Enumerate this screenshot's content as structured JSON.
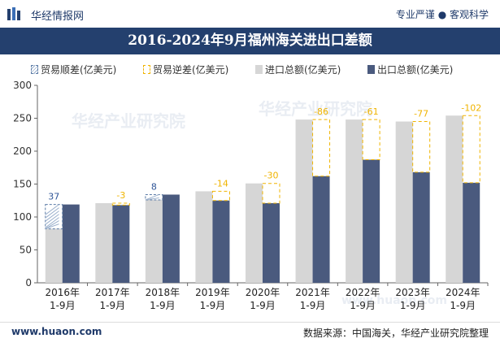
{
  "header": {
    "brand": "华经情报网",
    "slogan": "专业严谨 ● 客观科学"
  },
  "watermark": {
    "text": "华经产业研究院",
    "url": "www.huaon.com"
  },
  "chart_data": {
    "type": "bar",
    "title": "2016-2024年9月福州海关进出口差额",
    "categories": [
      "2016年\n1-9月",
      "2017年\n1-9月",
      "2018年\n1-9月",
      "2019年\n1-9月",
      "2020年\n1-9月",
      "2021年\n1-9月",
      "2022年\n1-9月",
      "2023年\n1-9月",
      "2024年\n1-9月"
    ],
    "legend": {
      "surplus": "贸易顺差(亿美元)",
      "deficit": "贸易逆差(亿美元)",
      "import": "进口总额(亿美元)",
      "export": "出口总额(亿美元)"
    },
    "series": [
      {
        "name": "进口总额(亿美元)",
        "values": [
          82,
          121,
          126,
          139,
          151,
          248,
          248,
          245,
          254
        ],
        "color": "#d6d6d6"
      },
      {
        "name": "出口总额(亿美元)",
        "values": [
          119,
          118,
          134,
          125,
          121,
          162,
          187,
          168,
          152
        ],
        "color": "#4a5a7e"
      }
    ],
    "balance": {
      "values": [
        37,
        -3,
        8,
        -14,
        -30,
        -86,
        -61,
        -77,
        -102
      ],
      "labels": [
        "37",
        "-3",
        "8",
        "-14",
        "-30",
        "-86",
        "-61",
        "-77",
        "-102"
      ],
      "surplus_color": "#2f5597",
      "deficit_color": "#f0b400"
    },
    "y_ticks": [
      "0",
      "50",
      "100",
      "150",
      "200",
      "250",
      "300"
    ],
    "ylim": [
      0,
      300
    ]
  },
  "footer": {
    "website": "www.huaon.com",
    "source": "数据来源：中国海关，华经产业研究院整理"
  }
}
